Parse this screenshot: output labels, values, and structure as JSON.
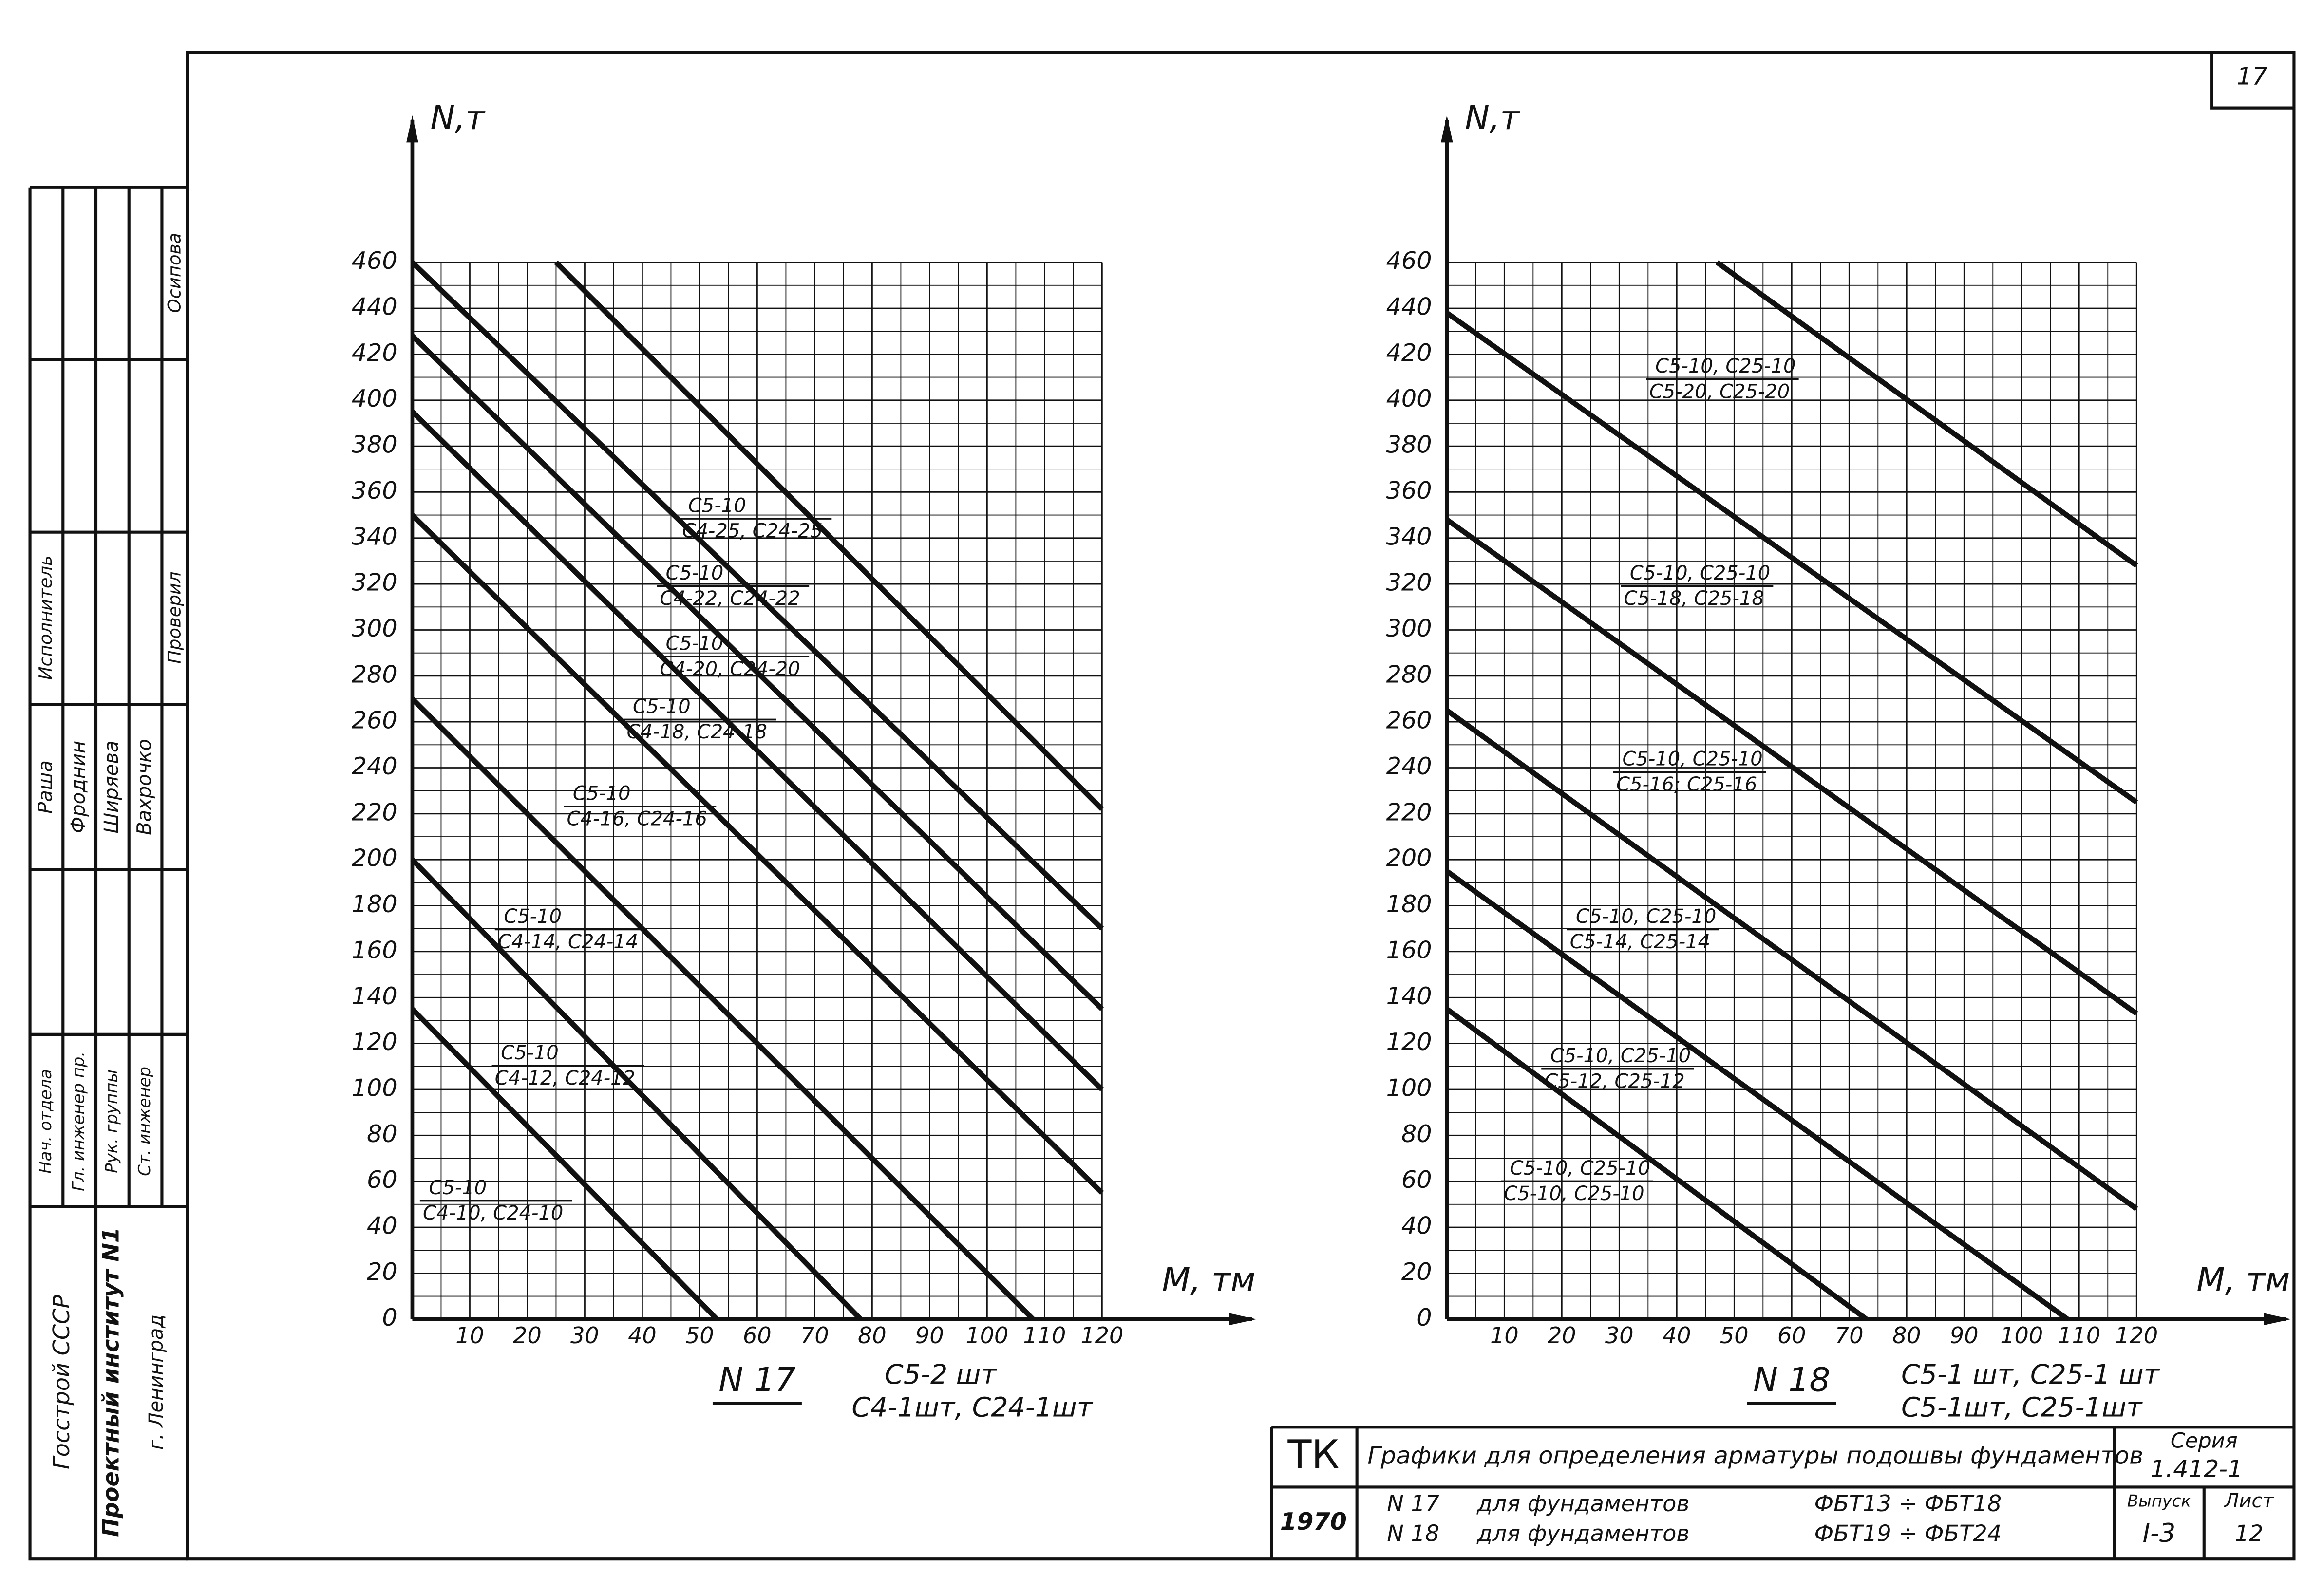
{
  "page_number": "17",
  "chart_data": [
    {
      "type": "line",
      "title": "N 17",
      "xlabel": "M, тм",
      "ylabel": "N,т",
      "notes": [
        "С5-2 шт",
        "С4-1шт, С24-1шт"
      ],
      "xlim": [
        0,
        120
      ],
      "xticks": [
        10,
        20,
        30,
        40,
        50,
        60,
        70,
        80,
        90,
        100,
        110,
        120
      ],
      "ylim": [
        0,
        460
      ],
      "yticks": [
        0,
        20,
        40,
        60,
        80,
        100,
        120,
        140,
        160,
        180,
        200,
        220,
        240,
        260,
        280,
        300,
        320,
        340,
        360,
        380,
        400,
        420,
        440,
        460
      ],
      "grid": true,
      "color": "#111111",
      "series": [
        {
          "labels": [
            "С5-10",
            "С4-10, С24-10"
          ],
          "x": [
            0,
            53
          ],
          "values": [
            135,
            0
          ]
        },
        {
          "labels": [
            "С5-10",
            "С4-12, С24-12"
          ],
          "x": [
            0,
            78
          ],
          "values": [
            200,
            0
          ]
        },
        {
          "labels": [
            "С5-10",
            "С4-14, С24-14"
          ],
          "x": [
            0,
            108
          ],
          "values": [
            270,
            0
          ]
        },
        {
          "labels": [
            "С5-10",
            "С4-16, С24-16"
          ],
          "x": [
            0,
            120
          ],
          "values": [
            350,
            55
          ]
        },
        {
          "labels": [
            "С5-10",
            "С4-18, С24-18"
          ],
          "x": [
            0,
            120
          ],
          "values": [
            395,
            100
          ]
        },
        {
          "labels": [
            "С5-10",
            "С4-20, С24-20"
          ],
          "x": [
            0,
            120
          ],
          "values": [
            428,
            135
          ]
        },
        {
          "labels": [
            "С5-10",
            "С4-22, С24-22"
          ],
          "x": [
            0,
            120
          ],
          "values": [
            460,
            170
          ]
        },
        {
          "labels": [
            "С5-10",
            "С4-25, С24-25"
          ],
          "x": [
            25,
            120
          ],
          "values": [
            460,
            222
          ]
        }
      ]
    },
    {
      "type": "line",
      "title": "N 18",
      "xlabel": "M, тм",
      "ylabel": "N,т",
      "notes": [
        "С5-1 шт, С25-1 шт",
        "С5-1шт, С25-1шт"
      ],
      "xlim": [
        0,
        120
      ],
      "xticks": [
        10,
        20,
        30,
        40,
        50,
        60,
        70,
        80,
        90,
        100,
        110,
        120
      ],
      "ylim": [
        0,
        460
      ],
      "yticks": [
        0,
        20,
        40,
        60,
        80,
        100,
        120,
        140,
        160,
        180,
        200,
        220,
        240,
        260,
        280,
        300,
        320,
        340,
        360,
        380,
        400,
        420,
        440,
        460
      ],
      "grid": true,
      "color": "#111111",
      "series": [
        {
          "labels": [
            "С5-10, С25-10",
            "С5-10, С25-10"
          ],
          "x": [
            0,
            73
          ],
          "values": [
            135,
            0
          ]
        },
        {
          "labels": [
            "С5-10, С25-10",
            "С5-12, С25-12"
          ],
          "x": [
            0,
            108
          ],
          "values": [
            195,
            0
          ]
        },
        {
          "labels": [
            "С5-10, С25-10",
            "С5-14, С25-14"
          ],
          "x": [
            0,
            120
          ],
          "values": [
            265,
            48
          ]
        },
        {
          "labels": [
            "С5-10, С25-10",
            "С5-16; С25-16"
          ],
          "x": [
            0,
            120
          ],
          "values": [
            348,
            133
          ]
        },
        {
          "labels": [
            "С5-10, С25-10",
            "С5-18, С25-18"
          ],
          "x": [
            0,
            120
          ],
          "values": [
            438,
            225
          ]
        },
        {
          "labels": [
            "С5-10, С25-10",
            "С5-20, С25-20"
          ],
          "x": [
            47,
            120
          ],
          "values": [
            460,
            328
          ]
        }
      ]
    }
  ],
  "title_block": {
    "code": "ТК",
    "title": "Графики для определения арматуры подошвы фундаментов",
    "series_label": "Серия",
    "series": "1.412-1",
    "year": "1970",
    "rows": [
      [
        "N 17",
        "для фундаментов",
        "ФБТ13 ÷ ФБТ18"
      ],
      [
        "N 18",
        "для фундаментов",
        "ФБТ19 ÷ ФБТ24"
      ]
    ],
    "issue_label": "Выпуск",
    "sheet_label": "Лист",
    "issue": "I-3",
    "sheet": "12"
  },
  "side_stamp": {
    "org": [
      "Госстрой СССР",
      "Проектный институт N1",
      "г. Ленинград"
    ],
    "roles": [
      "Нач. отдела",
      "Гл. инженер пр.",
      "Рук. группы",
      "Ст. инженер"
    ],
    "names": [
      "Раша",
      "Фроднин",
      "Ширяева",
      "Вахрочко"
    ],
    "top": [
      "Исполнитель",
      "Проверил",
      "Осипова"
    ]
  }
}
